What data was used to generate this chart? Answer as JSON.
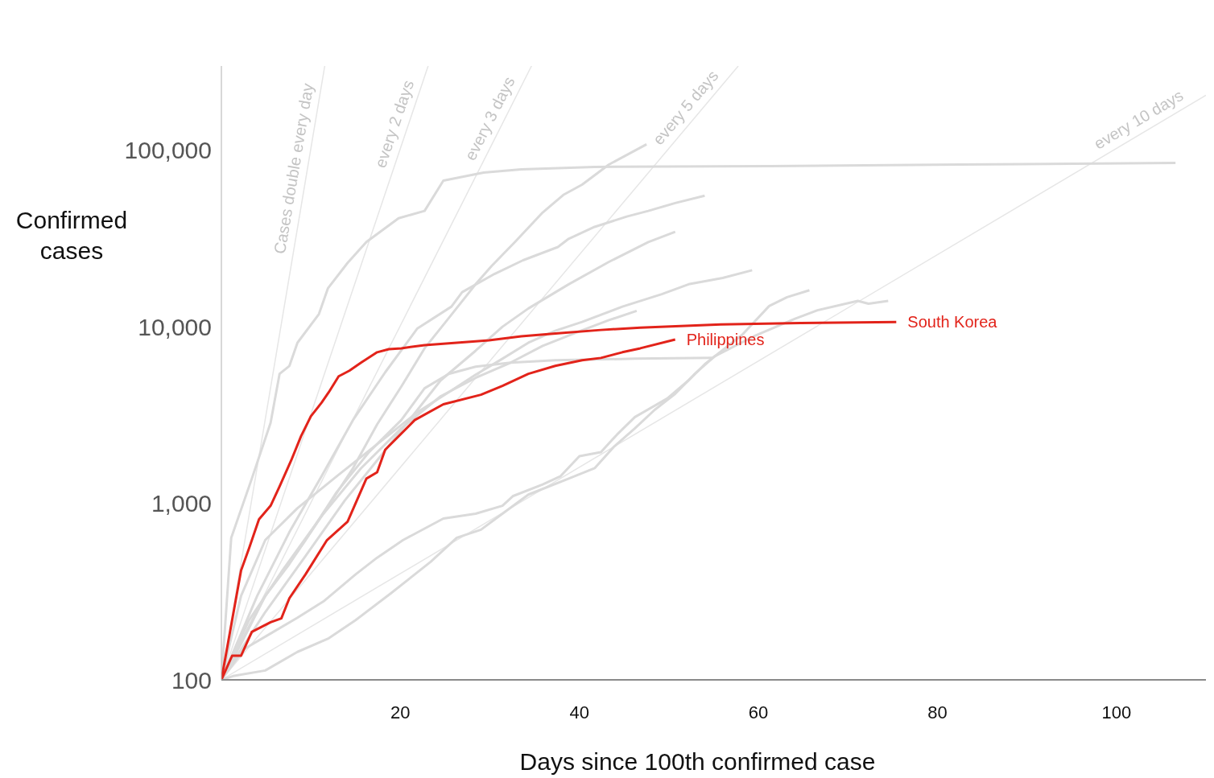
{
  "chart_data": {
    "type": "line",
    "xlabel": "Days since 100th confirmed case",
    "ylabel": "Confirmed cases",
    "log": "y",
    "marker": "none",
    "line_style": "solid",
    "xlim": [
      0,
      110
    ],
    "xticks": [
      20,
      40,
      60,
      80,
      100
    ],
    "ylim": [
      100,
      300000
    ],
    "yticks": [
      {
        "value": 100,
        "label": "100"
      },
      {
        "value": 1000,
        "label": "1,000"
      },
      {
        "value": 10000,
        "label": "10,000"
      },
      {
        "value": 100000,
        "label": "100,000"
      }
    ],
    "series": [
      {
        "name": "Cases double every day",
        "color": "#e6e6e6",
        "x": [
          0,
          11.55
        ],
        "values": [
          100,
          300000
        ]
      },
      {
        "name": "every 2 days",
        "color": "#e6e6e6",
        "x": [
          0,
          23.1
        ],
        "values": [
          100,
          300000
        ]
      },
      {
        "name": "every 3 days",
        "color": "#e6e6e6",
        "x": [
          0,
          34.65
        ],
        "values": [
          100,
          300000
        ]
      },
      {
        "name": "every 5 days",
        "color": "#e6e6e6",
        "x": [
          0,
          57.75
        ],
        "values": [
          100,
          300000
        ]
      },
      {
        "name": "every 10 days",
        "color": "#e6e6e6",
        "x": [
          0,
          110
        ],
        "values": [
          100,
          204800
        ]
      },
      {
        "color": "#dadada",
        "x": [
          0,
          1.1,
          3.4,
          5.5,
          6.5,
          7.6,
          8.5,
          10.9,
          11.9,
          14.1,
          16.2,
          19.8,
          22.7,
          24.8,
          29.3,
          33.5,
          41.7,
          61.1,
          82.5,
          106.6
        ],
        "values": [
          100,
          638,
          1380,
          2860,
          5410,
          6000,
          8120,
          11800,
          16500,
          23000,
          30200,
          41200,
          45300,
          67300,
          74700,
          77900,
          80400,
          81300,
          83000,
          84700
        ]
      },
      {
        "color": "#dadada",
        "x": [
          0,
          2.2,
          4.9,
          7.6,
          11.2,
          14.7,
          17.4,
          20.1,
          22.7,
          25.4,
          28.4,
          30.2,
          32.8,
          35.9,
          38.2,
          40.3,
          43.3,
          47.5
        ],
        "values": [
          100,
          160,
          299,
          453,
          847,
          1580,
          2800,
          4580,
          7550,
          11200,
          17400,
          22100,
          30200,
          44400,
          55800,
          63800,
          83000,
          108000
        ]
      },
      {
        "color": "#dadada",
        "x": [
          0,
          4.0,
          7.6,
          11.2,
          14.7,
          18.3,
          21.9,
          25.7,
          26.9,
          30.5,
          33.7,
          37.6,
          38.8,
          41.7,
          45.3,
          47.7,
          50.7,
          54.0
        ],
        "values": [
          100,
          299,
          687,
          1425,
          2960,
          5520,
          9790,
          13000,
          15700,
          19900,
          23800,
          28300,
          31500,
          36800,
          42100,
          45300,
          50200,
          55200
        ]
      },
      {
        "color": "#dadada",
        "x": [
          0,
          4.9,
          9.4,
          13.8,
          17.4,
          21.0,
          24.5,
          28.4,
          31.4,
          34.3,
          38.8,
          43.3,
          47.7,
          50.7
        ],
        "values": [
          100,
          242,
          503,
          1040,
          1750,
          2960,
          4970,
          7310,
          10000,
          12700,
          17400,
          23300,
          30200,
          34500
        ]
      },
      {
        "color": "#dadada",
        "x": [
          0,
          2.2,
          4.9,
          8.5,
          12.9,
          17.4,
          21.9,
          25.4,
          28.4,
          31.4,
          34.3,
          37.3,
          40.3,
          44.8,
          49.2,
          52.2,
          56.0,
          59.3
        ],
        "values": [
          100,
          299,
          619,
          939,
          1425,
          2160,
          3280,
          4260,
          5350,
          6590,
          8120,
          9490,
          10650,
          13000,
          15300,
          17400,
          18900,
          20900
        ]
      },
      {
        "color": "#dadada",
        "x": [
          0,
          3.1,
          6.7,
          11.2,
          15.6,
          20.1,
          24.5,
          28.4,
          32.3,
          35.9,
          39.7,
          43.3,
          46.4
        ],
        "values": [
          100,
          218,
          408,
          847,
          1580,
          2660,
          4040,
          5130,
          6260,
          7790,
          9300,
          10900,
          12300
        ]
      },
      {
        "color": "#dadada",
        "x": [
          0,
          4.9,
          9.4,
          12.9,
          16.5,
          20.1,
          22.7,
          25.4,
          28.4,
          32.3,
          37.3,
          46.2,
          54.9
        ],
        "values": [
          100,
          299,
          619,
          1160,
          1950,
          2960,
          4480,
          5410,
          5940,
          6260,
          6460,
          6590,
          6660
        ]
      },
      {
        "color": "#dadada",
        "x": [
          0,
          2.5,
          5.5,
          8.5,
          11.4,
          15.0,
          17.4,
          20.3,
          24.8,
          28.4,
          31.4,
          32.6,
          35.9,
          37.9,
          40.0,
          42.4,
          44.2,
          46.2,
          49.8,
          52.2,
          54.0,
          58.2,
          61.2,
          63.2,
          65.7
        ],
        "values": [
          100,
          149,
          183,
          225,
          278,
          396,
          492,
          619,
          820,
          873,
          969,
          1100,
          1280,
          1425,
          1850,
          1950,
          2450,
          3080,
          3920,
          4970,
          6130,
          9020,
          13100,
          14700,
          16100
        ]
      },
      {
        "color": "#dadada",
        "x": [
          0,
          1.3,
          4.9,
          8.5,
          12.0,
          15.0,
          18.9,
          23.4,
          26.3,
          29.0,
          31.4,
          34.3,
          38.8,
          41.7,
          43.9,
          46.2,
          48.4,
          50.7,
          52.8,
          55.1,
          59.5,
          64.1,
          66.6,
          71.1,
          72.3,
          74.5
        ],
        "values": [
          100,
          105,
          113,
          144,
          172,
          218,
          308,
          467,
          638,
          709,
          873,
          1120,
          1380,
          1580,
          2100,
          2660,
          3380,
          4170,
          5350,
          6800,
          8830,
          11100,
          12400,
          14000,
          13500,
          14000
        ]
      },
      {
        "name": "South Korea",
        "color": "#e2231a",
        "x": [
          0,
          2.2,
          3.1,
          4.2,
          5.5,
          6.5,
          7.8,
          8.9,
          10.0,
          11.2,
          12.0,
          13.1,
          14.3,
          15.6,
          17.4,
          18.7,
          20.1,
          22.7,
          26.3,
          29.9,
          33.5,
          37.9,
          42.4,
          46.8,
          55.8,
          64.7,
          75.4
        ],
        "values": [
          100,
          417,
          558,
          812,
          969,
          1245,
          1750,
          2400,
          3110,
          3720,
          4260,
          5240,
          5640,
          6260,
          7170,
          7470,
          7550,
          7870,
          8120,
          8380,
          8830,
          9200,
          9590,
          9890,
          10300,
          10500,
          10650
        ]
      },
      {
        "name": "Philippines",
        "color": "#e2231a",
        "x": [
          0,
          1.2,
          2.2,
          3.4,
          5.5,
          6.7,
          7.6,
          9.4,
          11.8,
          14.1,
          16.2,
          17.4,
          18.3,
          21.6,
          24.8,
          29.0,
          31.4,
          34.3,
          37.3,
          40.3,
          42.4,
          44.8,
          46.8,
          50.7
        ],
        "values": [
          100,
          137,
          137,
          187,
          212,
          223,
          290,
          396,
          619,
          787,
          1380,
          1500,
          2010,
          2960,
          3640,
          4120,
          4630,
          5410,
          6000,
          6460,
          6660,
          7170,
          7550,
          8470
        ]
      }
    ]
  }
}
